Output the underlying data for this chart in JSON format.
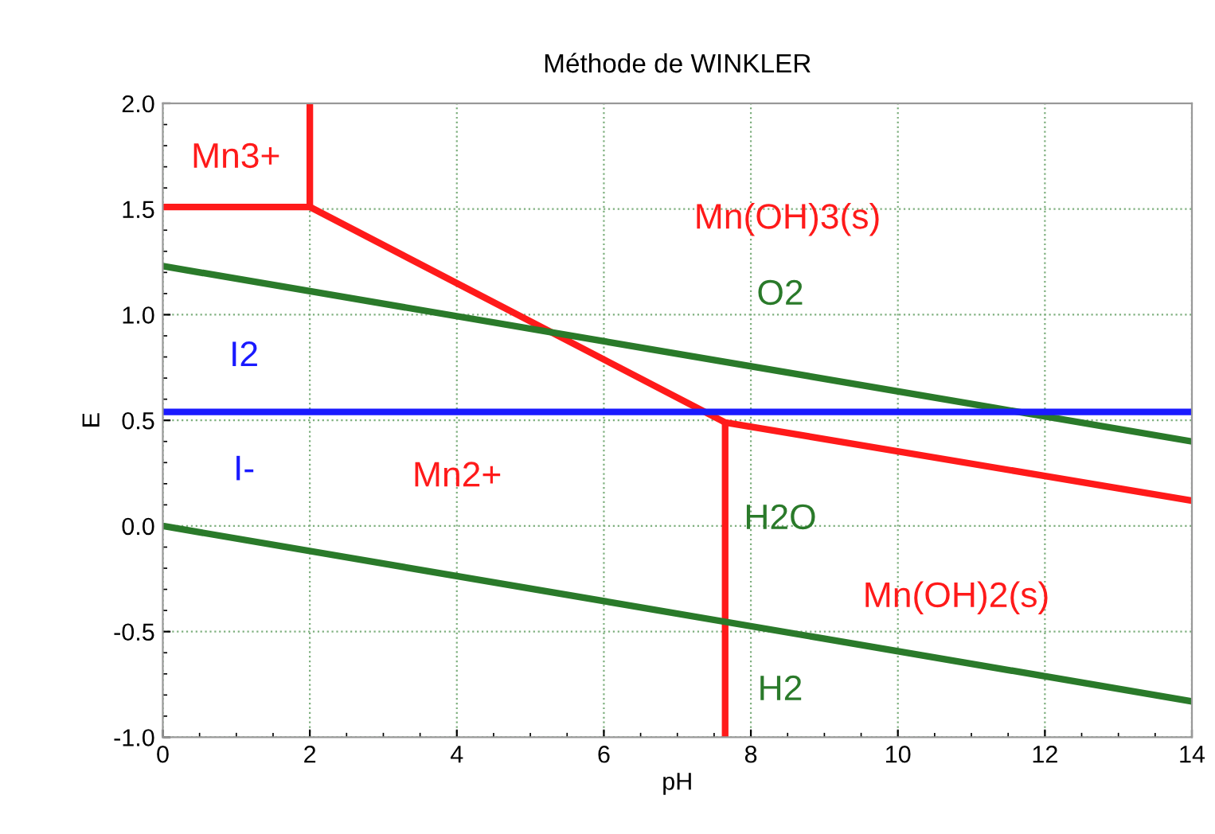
{
  "chart_data": {
    "type": "line",
    "title": "Méthode de WINKLER",
    "xlabel": "pH",
    "ylabel": "E",
    "xlim": [
      0,
      14
    ],
    "ylim": [
      -1.0,
      2.0
    ],
    "xticks": [
      0,
      2,
      4,
      6,
      8,
      10,
      12,
      14
    ],
    "yticks": [
      {
        "value": -1.0,
        "label": "-1.0"
      },
      {
        "value": -0.5,
        "label": "-0.5"
      },
      {
        "value": 0.0,
        "label": "0.0"
      },
      {
        "value": 0.5,
        "label": "0.5"
      },
      {
        "value": 1.0,
        "label": "1.0"
      },
      {
        "value": 1.5,
        "label": "1.5"
      },
      {
        "value": 2.0,
        "label": "2.0"
      }
    ],
    "grid": true,
    "marker": "none",
    "line_style": "solid",
    "series": [
      {
        "color": "#ff1a1a",
        "x": [
          2,
          2
        ],
        "values": [
          2.0,
          1.51
        ]
      },
      {
        "color": "#ff1a1a",
        "x": [
          0,
          2,
          7.65,
          14
        ],
        "values": [
          1.51,
          1.51,
          0.49,
          0.12
        ]
      },
      {
        "color": "#ff1a1a",
        "x": [
          7.65,
          7.65
        ],
        "values": [
          0.49,
          -1.0
        ]
      },
      {
        "color": "#2a7a2a",
        "x": [
          0,
          14
        ],
        "values": [
          1.23,
          0.4
        ]
      },
      {
        "color": "#2a7a2a",
        "x": [
          0,
          14
        ],
        "values": [
          0.0,
          -0.83
        ]
      },
      {
        "color": "#1a1aff",
        "x": [
          0,
          14
        ],
        "values": [
          0.54,
          0.54
        ]
      }
    ],
    "annotations": [
      "Mn3+",
      "Mn(OH)3(s)",
      "O2",
      "I2",
      "I-",
      "Mn2+",
      "H2O",
      "Mn(OH)2(s)",
      "H2"
    ]
  }
}
